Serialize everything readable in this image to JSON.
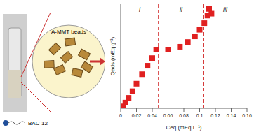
{
  "chart_data": {
    "type": "scatter",
    "xlabel": "Ceq (mEq L⁻¹)",
    "ylabel": "Qads (mEq g⁻¹)",
    "x": [
      0.003,
      0.006,
      0.01,
      0.015,
      0.02,
      0.027,
      0.034,
      0.04,
      0.045,
      0.06,
      0.075,
      0.085,
      0.094,
      0.1,
      0.106,
      0.11,
      0.112,
      0.115
    ],
    "values": [
      0.02,
      0.06,
      0.11,
      0.18,
      0.26,
      0.36,
      0.45,
      0.53,
      0.62,
      0.62,
      0.65,
      0.7,
      0.76,
      0.83,
      0.9,
      0.98,
      1.05,
      1.0
    ],
    "color": "#e02020",
    "marker": "square",
    "xlim": [
      0,
      0.16
    ],
    "xticks": [
      0,
      0.02,
      0.04,
      0.06,
      0.08,
      0.1,
      0.12,
      0.14,
      0.16
    ],
    "ylim": [
      0,
      1.1
    ],
    "tick_labels": "x",
    "region_bounds": [
      0.048,
      0.105
    ],
    "region_labels": [
      "i",
      "ii",
      "iii"
    ],
    "annotations": [
      "BAC-12",
      "A-MMT beads"
    ]
  }
}
